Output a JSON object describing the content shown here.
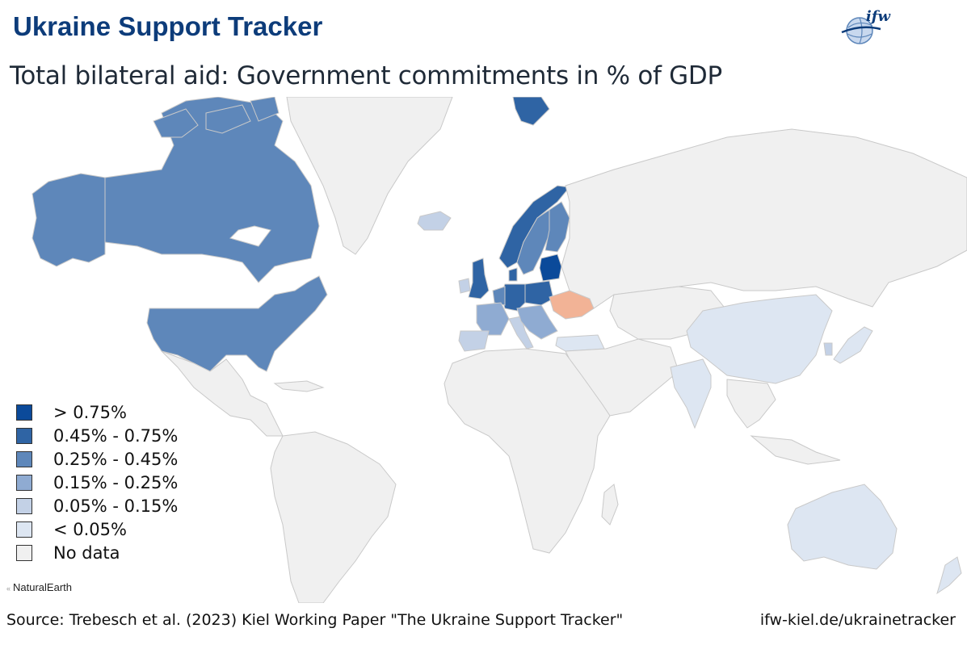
{
  "header": {
    "title": "Ukraine Support Tracker",
    "subtitle": "Total bilateral aid: Government commitments in % of GDP",
    "logo_text": "ifw"
  },
  "legend": [
    {
      "label": "> 0.75%",
      "color": "#0b4a9a"
    },
    {
      "label": "0.45% - 0.75%",
      "color": "#2f64a4"
    },
    {
      "label": "0.25% - 0.45%",
      "color": "#5e87ba"
    },
    {
      "label": "0.15% - 0.25%",
      "color": "#8fabd2"
    },
    {
      "label": "0.05% - 0.15%",
      "color": "#c3d1e6"
    },
    {
      "label": "< 0.05%",
      "color": "#dde6f2"
    },
    {
      "label": "No data",
      "color": "#f0f0f0"
    }
  ],
  "colors": {
    "ukraine": "#f2b396",
    "no_data": "#f0f0f0",
    "ocean": "#ffffff"
  },
  "attribution": "NaturalEarth",
  "footer": {
    "source": "Source: Trebesch et al. (2023) Kiel Working Paper \"The Ukraine Support Tracker\"",
    "site": "ifw-kiel.de/ukrainetracker"
  }
}
